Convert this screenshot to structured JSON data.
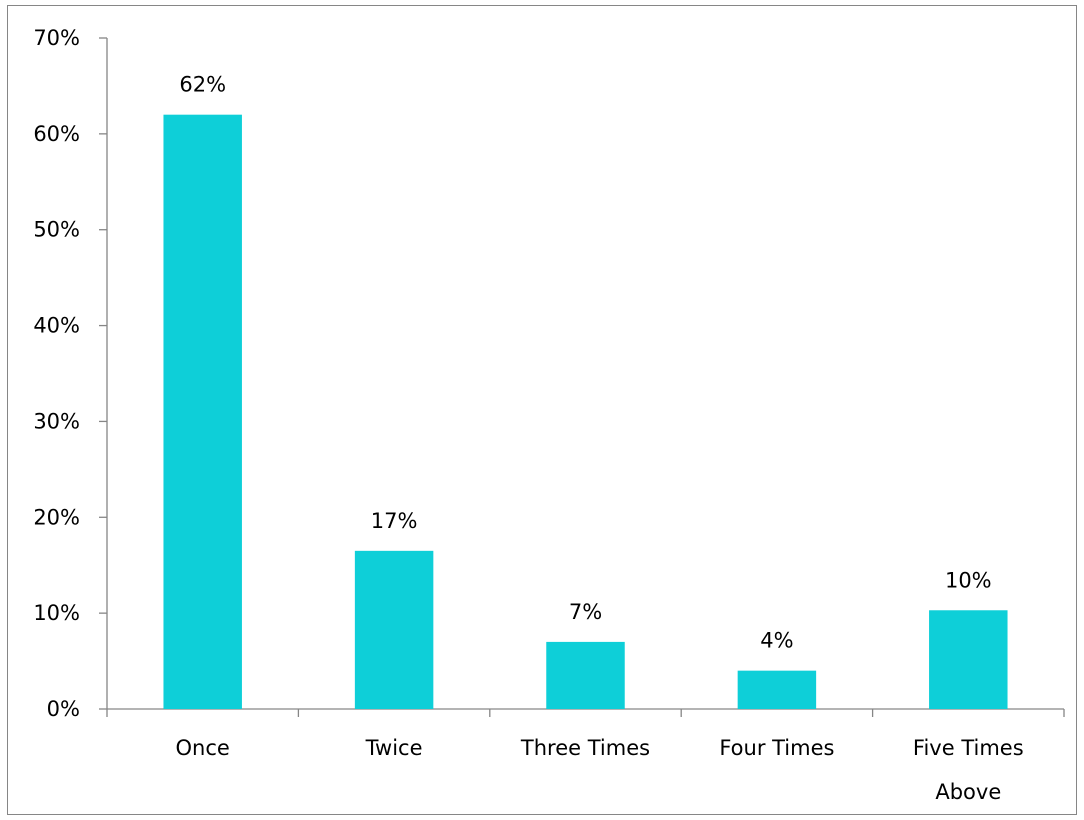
{
  "chart_data": {
    "type": "bar",
    "categories": [
      [
        "Once"
      ],
      [
        "Twice"
      ],
      [
        "Three Times"
      ],
      [
        "Four Times"
      ],
      [
        "Five Times",
        "Above"
      ]
    ],
    "values": [
      62,
      16.5,
      7,
      4,
      10.3
    ],
    "data_labels": [
      "62%",
      "17%",
      "7%",
      "4%",
      "10%"
    ],
    "yticks": [
      0,
      10,
      20,
      30,
      40,
      50,
      60,
      70
    ],
    "ytick_labels": [
      "0%",
      "10%",
      "20%",
      "30%",
      "40%",
      "50%",
      "60%",
      "70%"
    ],
    "ylim": [
      0,
      70
    ],
    "grid": false,
    "legend": "none",
    "bar_color": "#0ecfd8",
    "axis_color": "#868686"
  }
}
